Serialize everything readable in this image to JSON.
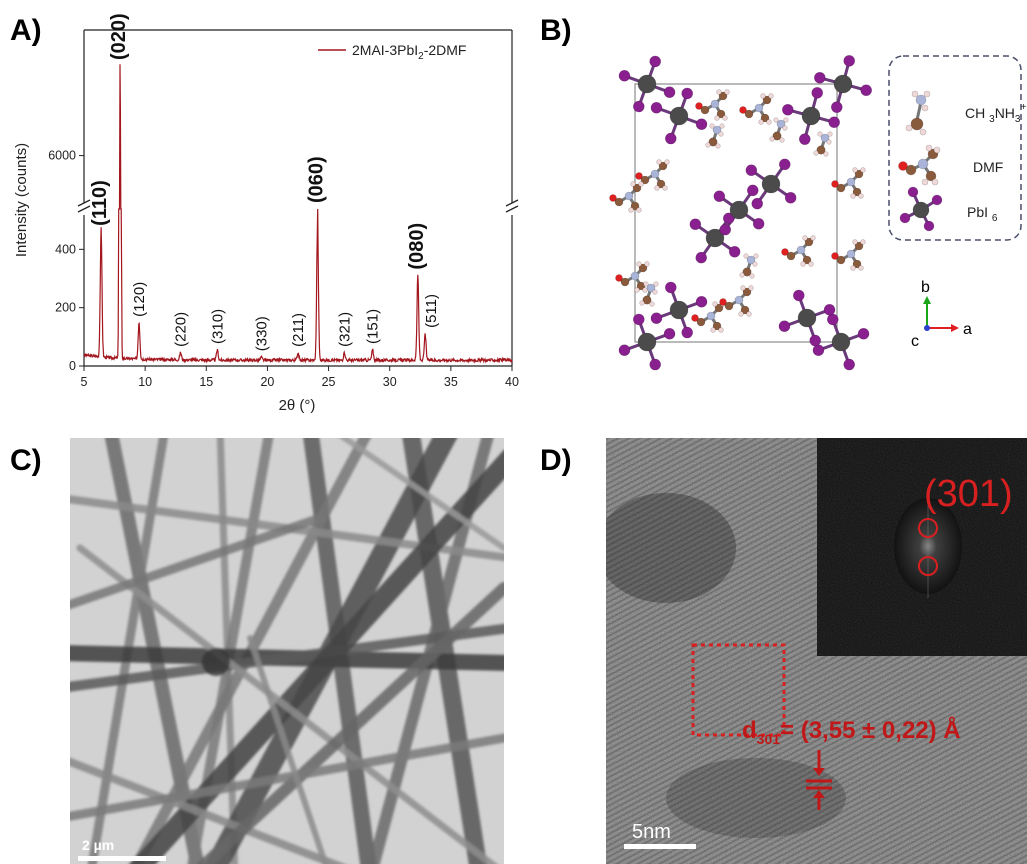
{
  "panels": {
    "a": "A)",
    "b": "B)",
    "c": "C)",
    "d": "D)"
  },
  "chart_data": {
    "type": "line",
    "title": "",
    "xlabel": "2θ (°)",
    "ylabel": "Intensity (counts)",
    "xlim": [
      5,
      40
    ],
    "ylim_lower": [
      0,
      480
    ],
    "ylim_upper": [
      5500,
      8000
    ],
    "axis_break_between": [
      480,
      5500
    ],
    "x_ticks": [
      5,
      10,
      15,
      20,
      25,
      30,
      35,
      40
    ],
    "y_ticks_lower": [
      0,
      200,
      400
    ],
    "y_ticks_upper": [
      6000
    ],
    "series": [
      {
        "name": "2MAI-3PbI2-2DMF",
        "color": "#a3161e",
        "background": 20,
        "peaks": [
          {
            "x": 6.4,
            "y": 460,
            "hkl": "(110)"
          },
          {
            "x": 7.95,
            "y": 7600,
            "hkl": "(020)"
          },
          {
            "x": 9.5,
            "y": 148,
            "hkl": "(120)"
          },
          {
            "x": 12.9,
            "y": 45,
            "hkl": "(220)"
          },
          {
            "x": 15.9,
            "y": 55,
            "hkl": "(310)"
          },
          {
            "x": 19.5,
            "y": 30,
            "hkl": "(330)"
          },
          {
            "x": 22.5,
            "y": 45,
            "hkl": "(211)"
          },
          {
            "x": 24.1,
            "y": 490,
            "hkl": "(060)"
          },
          {
            "x": 26.3,
            "y": 45,
            "hkl": "(321)"
          },
          {
            "x": 28.6,
            "y": 55,
            "hkl": "(151)"
          },
          {
            "x": 32.3,
            "y": 310,
            "hkl": "(080)"
          },
          {
            "x": 32.9,
            "y": 110,
            "hkl": "(511)"
          }
        ]
      }
    ],
    "legend": "top-right",
    "grid": false
  },
  "crystal": {
    "legend": {
      "ma": "CH3NH3+",
      "dmf": "DMF",
      "pbi6": "PbI6"
    },
    "axes": {
      "b": "b",
      "c": "c",
      "a": "a"
    },
    "colors": {
      "pb": "#4b4b4b",
      "iodine": "#8a1f8f",
      "carbon": "#8a5a3c",
      "nitrogen": "#a9b4d8",
      "oxygen": "#e02020",
      "hydrogen": "#f0d8d8"
    }
  },
  "tem": {
    "scale_label": "2 µm"
  },
  "hrtem": {
    "fft_label": "(301)",
    "d_spacing": "= (3,55 ± 0,22) Å",
    "d_symbol": "d",
    "d_sub": "301",
    "scale_label": "5nm",
    "accent": "#c01818"
  }
}
